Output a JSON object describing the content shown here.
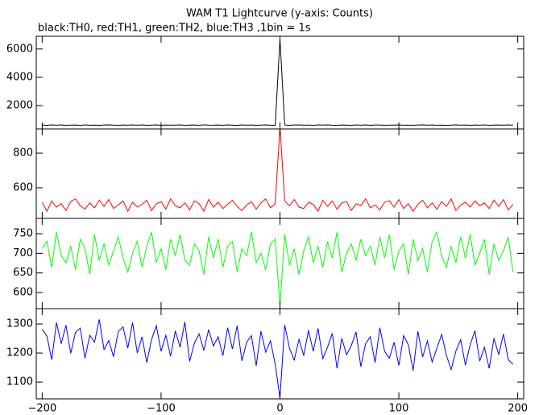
{
  "title": "WAM T1 Lightcurve (y-axis: Counts)",
  "subtitle": "black:TH0, red:TH1, green:TH2, blue:TH3 ,1bin = 1s",
  "chart_data": {
    "type": "line",
    "x": [
      -200,
      -196,
      -192,
      -188,
      -184,
      -180,
      -176,
      -172,
      -168,
      -164,
      -160,
      -156,
      -152,
      -148,
      -144,
      -140,
      -136,
      -132,
      -128,
      -124,
      -120,
      -116,
      -112,
      -108,
      -104,
      -100,
      -96,
      -92,
      -88,
      -84,
      -80,
      -76,
      -72,
      -68,
      -64,
      -60,
      -56,
      -52,
      -48,
      -44,
      -40,
      -36,
      -32,
      -28,
      -24,
      -20,
      -16,
      -12,
      -8,
      -4,
      0,
      4,
      8,
      12,
      16,
      20,
      24,
      28,
      32,
      36,
      40,
      44,
      48,
      52,
      56,
      60,
      64,
      68,
      72,
      76,
      80,
      84,
      88,
      92,
      96,
      100,
      104,
      108,
      112,
      116,
      120,
      124,
      128,
      132,
      136,
      140,
      144,
      148,
      152,
      156,
      160,
      164,
      168,
      172,
      176,
      180,
      184,
      188,
      192,
      196
    ],
    "xlim": [
      -205,
      205
    ],
    "xticks": [
      {
        "value": -200,
        "label": "−200"
      },
      {
        "value": -100,
        "label": "−100"
      },
      0,
      100,
      200
    ],
    "panels": [
      {
        "ylim": [
          350,
          6900
        ],
        "yticks": [
          2000,
          4000,
          6000
        ],
        "series": [
          {
            "color": "#000000",
            "values": [
              626,
              610,
              634,
              616,
              636,
              606,
              622,
              628,
              602,
              632,
              614,
              624,
              604,
              630,
              638,
              618,
              608,
              626,
              612,
              634,
              616,
              636,
              610,
              620,
              632,
              602,
              628,
              614,
              622,
              634,
              604,
              624,
              630,
              608,
              638,
              618,
              612,
              626,
              606,
              632,
              624,
              602,
              636,
              614,
              628,
              610,
              622,
              634,
              616,
              604,
              6700,
              630,
              608,
              626,
              638,
              612,
              624,
              606,
              632,
              618,
              636,
              614,
              610,
              628,
              622,
              602,
              634,
              616,
              632,
              608,
              626,
              630,
              604,
              624,
              618,
              638,
              612,
              620,
              606,
              628,
              632,
              614,
              636,
              610,
              624,
              602,
              622,
              634,
              612,
              626,
              608,
              630,
              616,
              638,
              604,
              620,
              628,
              614,
              632,
              618
            ]
          }
        ]
      },
      {
        "ylim": [
          423,
          940
        ],
        "yticks": [
          600,
          800
        ],
        "series": [
          {
            "color": "#ff0000",
            "values": [
              516,
              464,
              524,
              488,
              508,
              468,
              520,
              536,
              496,
              476,
              512,
              484,
              528,
              492,
              532,
              480,
              500,
              524,
              464,
              516,
              488,
              504,
              528,
              468,
              508,
              520,
              476,
              536,
              496,
              484,
              512,
              472,
              524,
              508,
              464,
              532,
              488,
              516,
              480,
              504,
              528,
              492,
              468,
              500,
              520,
              476,
              512,
              536,
              484,
              508,
              950,
              524,
              496,
              532,
              488,
              480,
              516,
              504,
              464,
              528,
              492,
              524,
              476,
              512,
              520,
              468,
              508,
              496,
              536,
              484,
              500,
              472,
              516,
              524,
              488,
              532,
              480,
              508,
              464,
              504,
              528,
              484,
              512,
              476,
              520,
              492,
              536,
              468,
              500,
              516,
              488,
              524,
              496,
              512,
              480,
              528,
              492,
              532,
              472,
              504
            ]
          }
        ]
      },
      {
        "ylim": [
          559,
          789
        ],
        "yticks": [
          600,
          650,
          700,
          750
        ],
        "series": [
          {
            "color": "#00ff00",
            "values": [
              712,
              730,
              664,
              754,
              694,
              676,
              718,
              658,
              736,
              712,
              646,
              748,
              682,
              724,
              670,
              706,
              742,
              688,
              652,
              700,
              730,
              664,
              718,
              754,
              676,
              712,
              658,
              736,
              694,
              748,
              682,
              670,
              724,
              706,
              646,
              742,
              688,
              736,
              664,
              718,
              730,
              652,
              712,
              694,
              754,
              676,
              700,
              658,
              724,
              736,
              565,
              748,
              670,
              712,
              646,
              706,
              742,
              676,
              718,
              664,
              730,
              688,
              754,
              652,
              700,
              724,
              682,
              736,
              694,
              718,
              670,
              742,
              688,
              748,
              658,
              706,
              724,
              646,
              736,
              682,
              712,
              652,
              730,
              754,
              694,
              664,
              718,
              676,
              742,
              688,
              748,
              670,
              700,
              736,
              646,
              724,
              682,
              706,
              742,
              652
            ]
          }
        ]
      },
      {
        "ylim": [
          1042,
          1353
        ],
        "yticks": [
          1100,
          1200,
          1300
        ],
        "series": [
          {
            "color": "#0000ff",
            "values": [
              1282,
              1258,
              1177,
              1305,
              1232,
              1296,
              1199,
              1271,
              1286,
              1182,
              1261,
              1237,
              1316,
              1212,
              1243,
              1187,
              1274,
              1290,
              1217,
              1305,
              1200,
              1256,
              1167,
              1247,
              1294,
              1206,
              1261,
              1189,
              1276,
              1220,
              1307,
              1171,
              1234,
              1266,
              1209,
              1281,
              1224,
              1256,
              1191,
              1287,
              1214,
              1294,
              1173,
              1237,
              1260,
              1156,
              1275,
              1203,
              1242,
              1162,
              1045,
              1297,
              1216,
              1176,
              1247,
              1191,
              1278,
              1206,
              1285,
              1181,
              1220,
              1268,
              1147,
              1251,
              1194,
              1226,
              1273,
              1153,
              1232,
              1256,
              1167,
              1287,
              1206,
              1182,
              1237,
              1157,
              1260,
              1228,
              1139,
              1275,
              1186,
              1242,
              1169,
              1217,
              1264,
              1192,
              1143,
              1207,
              1246,
              1158,
              1229,
              1277,
              1172,
              1220,
              1147,
              1251,
              1194,
              1266,
              1177,
              1161
            ]
          }
        ]
      }
    ]
  }
}
